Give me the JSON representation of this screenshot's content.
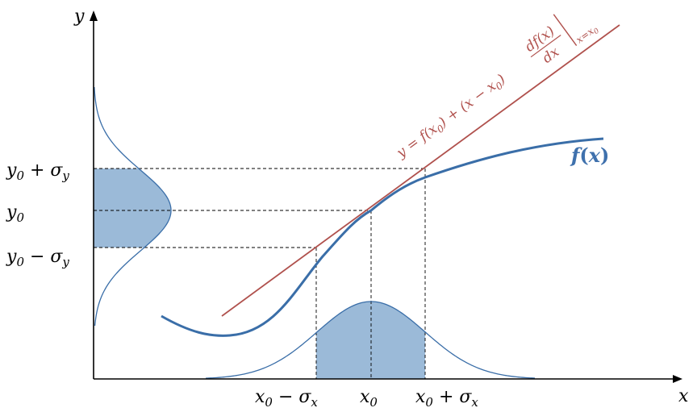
{
  "axes": {
    "x_label": "x",
    "y_label": "y"
  },
  "function_label": {
    "f": "f",
    "open": "(",
    "var": "x",
    "close": ")"
  },
  "tangent_label": {
    "lhs": "y  =  f(x",
    "sub0": "0",
    "mid": ") + (x − x",
    "sub1": "0",
    "end": ")",
    "numerator": "df(x)",
    "denominator": "dx",
    "eval": "x=x",
    "eval_sub": "0"
  },
  "x_ticks": {
    "minus": {
      "base": "x",
      "sub": "0",
      "op": " − σ",
      "sub2": "x"
    },
    "center": {
      "base": "x",
      "sub": "0"
    },
    "plus": {
      "base": "x",
      "sub": "0",
      "op": " + σ",
      "sub2": "x"
    }
  },
  "y_ticks": {
    "plus": {
      "base": "y",
      "sub": "0",
      "op": " + σ",
      "sub2": "y"
    },
    "center": {
      "base": "y",
      "sub": "0"
    },
    "minus": {
      "base": "y",
      "sub": "0",
      "op": " − σ",
      "sub2": "y"
    }
  },
  "colors": {
    "curve": "#3a6ea8",
    "shade": "#9bbad8",
    "tangent": "#b0514d",
    "label": "#3f71ad"
  }
}
